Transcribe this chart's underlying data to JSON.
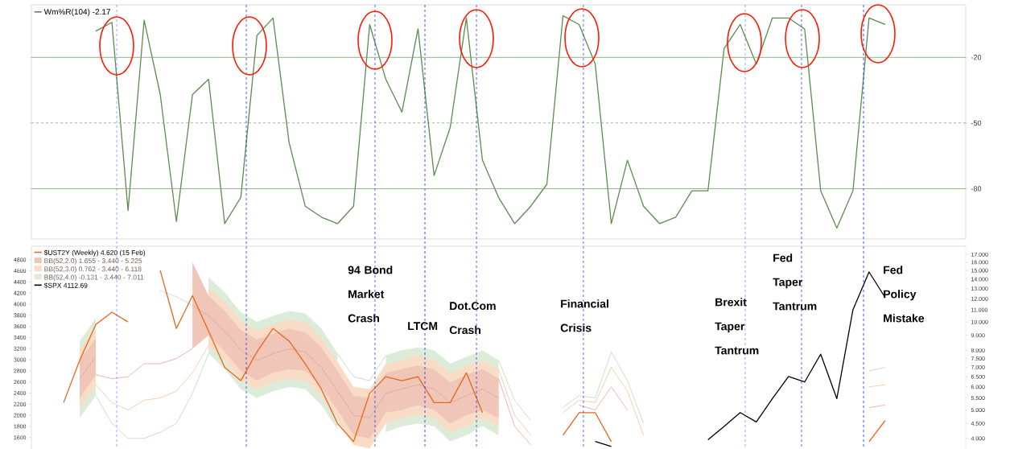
{
  "chart_data": [
    {
      "type": "line",
      "categories": [
        null,
        null,
        null,
        null,
        null,
        null,
        null,
        null,
        null,
        null,
        null,
        null,
        null,
        null,
        null,
        null,
        null,
        null,
        null,
        null,
        null,
        null,
        null,
        null,
        null,
        null,
        null,
        null,
        null,
        null,
        null,
        null,
        null,
        null,
        null,
        null,
        null,
        null,
        null,
        null,
        null,
        null,
        null,
        null,
        null,
        null,
        null,
        null,
        null,
        null,
        null,
        null,
        null,
        null,
        null,
        null,
        null,
        null,
        null
      ],
      "ylim": [
        -103,
        4
      ],
      "yticks": [
        -80,
        -50,
        -20
      ],
      "tick_labels": "y",
      "legend": "top left",
      "series": [
        {
          "name": "Wm%R(104) -2.17",
          "color": "#5b8c51",
          "values": [
            null,
            null,
            null,
            null,
            -8,
            -4,
            -90,
            -3,
            -37,
            -95,
            -37,
            -30,
            -96,
            -84,
            -10,
            -2,
            -59,
            -88,
            -93,
            -96,
            -88,
            -5,
            -30,
            -45,
            -7,
            -74,
            -52,
            -2,
            -67,
            -84,
            -96,
            -88,
            -78,
            -1,
            -5,
            -23,
            -96,
            -67,
            -88,
            -96,
            -93,
            -81,
            -81,
            -16,
            -5,
            -23,
            -2,
            -2,
            -7,
            -81,
            -98,
            -81,
            -2,
            -5,
            null,
            null,
            null,
            null,
            null
          ]
        }
      ],
      "ref_lines": [
        {
          "axis": "y",
          "value": -20,
          "color": "#7aa86e"
        },
        {
          "axis": "y",
          "value": -50,
          "color": "#7aa86e",
          "line_style": "dashed"
        },
        {
          "axis": "y",
          "value": -80,
          "color": "#7aa86e"
        }
      ]
    },
    {
      "type": "line",
      "categories": [
        null,
        null,
        null,
        null,
        null,
        null,
        null,
        null,
        null,
        null,
        null,
        null,
        null,
        null,
        null,
        null,
        null,
        null,
        null,
        null,
        null,
        null,
        null,
        null,
        null,
        null,
        null,
        null,
        null,
        null,
        null,
        null,
        null,
        null,
        null,
        null,
        null,
        null,
        null,
        null,
        null,
        null,
        null,
        null,
        null,
        null,
        null,
        null,
        null,
        null,
        null,
        null,
        null,
        null,
        null,
        null,
        null,
        null,
        null
      ],
      "ylim": [
        1394,
        5043
      ],
      "yticks": [
        1600,
        1800,
        2000,
        2200,
        2400,
        2600,
        2800,
        3000,
        3200,
        3400,
        3600,
        3800,
        4000,
        4200,
        4400,
        4600,
        4800
      ],
      "y2lim": [
        3.68,
        18.15
      ],
      "y2ticks": [
        {
          "value": 4,
          "label": "4.000"
        },
        {
          "value": 4.5,
          "label": "4.500"
        },
        {
          "value": 5,
          "label": "5.000"
        },
        {
          "value": 5.5,
          "label": "5.500"
        },
        {
          "value": 6,
          "label": "6.000"
        },
        {
          "value": 6.5,
          "label": "6.500"
        },
        {
          "value": 7,
          "label": "7.000"
        },
        {
          "value": 7.5,
          "label": "7.500"
        },
        {
          "value": 8,
          "label": "8.000"
        },
        {
          "value": 9,
          "label": "9.000"
        },
        {
          "value": 10,
          "label": "10.000"
        },
        {
          "value": 11,
          "label": "11.000"
        },
        {
          "value": 12,
          "label": "12.000"
        },
        {
          "value": 13,
          "label": "13.000"
        },
        {
          "value": 14,
          "label": "14.000"
        },
        {
          "value": 15,
          "label": "15.000"
        },
        {
          "value": 16,
          "label": "16.000"
        },
        {
          "value": 17,
          "label": "17.000"
        }
      ],
      "log": "y2",
      "tick_labels": "y",
      "legend": "top left",
      "annotations": [
        "94 Bond Market Crash",
        "LTCM",
        "Dot.Com Crash",
        "Financial Crisis",
        "Brexit Taper Tantrum",
        "Fed Taper Tantrum",
        "Fed Policy Mistake"
      ],
      "series": [
        {
          "name": "$UST2Y (Weekly) 4.620 (15 Feb)",
          "color": "#e8671c",
          "axis": "y2",
          "values": [
            null,
            null,
            5.3,
            7.4,
            9.8,
            10.8,
            10.0,
            null,
            15.0,
            9.5,
            12.3,
            9.3,
            7.0,
            6.3,
            7.9,
            9.5,
            8.6,
            7.2,
            5.9,
            4.5,
            3.9,
            5.7,
            6.5,
            6.3,
            6.5,
            5.3,
            5.3,
            6.7,
            4.9,
            null,
            null,
            null,
            null,
            4.1,
            4.9,
            4.9,
            3.9,
            null,
            null,
            null,
            null,
            null,
            null,
            null,
            null,
            null,
            null,
            null,
            null,
            null,
            null,
            null,
            3.9,
            4.6,
            null,
            null,
            null,
            null,
            null
          ]
        },
        {
          "name": "BB(52,2.0) 1.655 - 3.440 - 5.225",
          "color": "#efc6b8",
          "axis": "y2",
          "values": [
            null,
            null,
            null,
            null,
            null,
            null,
            null,
            null,
            null,
            null,
            null,
            null,
            null,
            null,
            null,
            null,
            null,
            null,
            null,
            null,
            null,
            null,
            null,
            null,
            null,
            null,
            null,
            null,
            null,
            null,
            null,
            null,
            null,
            null,
            null,
            null,
            null,
            null,
            null,
            null,
            null,
            null,
            null,
            null,
            null,
            null,
            null,
            null,
            null,
            null,
            null,
            null,
            null,
            null,
            null,
            null,
            null,
            null,
            null
          ],
          "lower": [
            null,
            null,
            null,
            5.5,
            6.6,
            null,
            null,
            null,
            null,
            null,
            8.1,
            9.0,
            7.9,
            6.8,
            6.3,
            6.7,
            6.9,
            6.8,
            6.0,
            5.0,
            4.1,
            4.0,
            4.9,
            5.0,
            5.2,
            5.0,
            4.5,
            4.8,
            5.0,
            4.7,
            null,
            null,
            null,
            null,
            null,
            null,
            null,
            null,
            null,
            null,
            null,
            null,
            null,
            null,
            null,
            null,
            null,
            null,
            null,
            null,
            null,
            null,
            null,
            null,
            null,
            null,
            null,
            null,
            null
          ],
          "upper": [
            null,
            null,
            null,
            7.4,
            8.8,
            null,
            null,
            null,
            null,
            null,
            16.0,
            12.3,
            10.9,
            9.4,
            8.7,
            9.1,
            9.5,
            9.2,
            8.2,
            6.8,
            5.6,
            5.5,
            6.7,
            6.9,
            7.1,
            6.9,
            6.2,
            6.6,
            6.9,
            6.4,
            null,
            null,
            null,
            null,
            null,
            null,
            null,
            null,
            null,
            null,
            null,
            null,
            null,
            null,
            null,
            null,
            null,
            null,
            null,
            null,
            null,
            null,
            null,
            null,
            null,
            null,
            null,
            null,
            null
          ]
        },
        {
          "name": "BB(52,3.0) 0.762 - 3.440 - 6.118",
          "color": "#f9dcc6",
          "axis": "y2",
          "values": [
            null,
            null,
            null,
            null,
            null,
            null,
            null,
            null,
            null,
            null,
            null,
            null,
            null,
            null,
            null,
            null,
            null,
            null,
            null,
            null,
            null,
            null,
            null,
            null,
            null,
            null,
            null,
            null,
            null,
            null,
            null,
            null,
            null,
            null,
            null,
            null,
            null,
            null,
            null,
            null,
            null,
            null,
            null,
            null,
            null,
            null,
            null,
            null,
            null,
            null,
            null,
            null,
            null,
            null,
            null,
            null,
            null,
            null,
            null
          ],
          "lower": [
            null,
            null,
            null,
            5.1,
            6.1,
            null,
            null,
            null,
            null,
            null,
            null,
            8.3,
            7.4,
            6.3,
            5.9,
            6.2,
            6.4,
            6.3,
            5.6,
            4.6,
            3.8,
            3.7,
            4.5,
            4.7,
            4.8,
            4.7,
            4.2,
            4.4,
            4.7,
            4.4,
            null,
            null,
            null,
            null,
            null,
            null,
            null,
            null,
            null,
            null,
            null,
            null,
            null,
            null,
            null,
            null,
            null,
            null,
            null,
            null,
            null,
            null,
            null,
            null,
            null,
            null,
            null,
            null,
            null
          ],
          "upper": [
            null,
            null,
            null,
            8.0,
            9.5,
            null,
            null,
            null,
            null,
            null,
            null,
            13.2,
            11.7,
            10.1,
            9.3,
            9.8,
            10.2,
            10.0,
            8.8,
            7.3,
            6.0,
            5.9,
            7.2,
            7.4,
            7.7,
            7.4,
            6.7,
            7.1,
            7.4,
            6.9,
            null,
            null,
            null,
            null,
            null,
            null,
            null,
            null,
            null,
            null,
            null,
            null,
            null,
            null,
            null,
            null,
            null,
            null,
            null,
            null,
            null,
            null,
            null,
            null,
            null,
            null,
            null,
            null,
            null
          ]
        },
        {
          "name": "BB(52,4.0) -0.131 - 3.440 - 7.011",
          "color": "#ddecd9",
          "axis": "y2",
          "values": [
            null,
            null,
            null,
            null,
            null,
            null,
            null,
            null,
            null,
            null,
            null,
            null,
            null,
            null,
            null,
            null,
            null,
            null,
            null,
            null,
            null,
            null,
            null,
            null,
            null,
            null,
            null,
            null,
            null,
            null,
            null,
            null,
            null,
            null,
            null,
            null,
            null,
            null,
            null,
            null,
            null,
            null,
            null,
            null,
            null,
            null,
            null,
            null,
            null,
            null,
            null,
            null,
            null,
            null,
            null,
            null,
            null,
            null,
            null
          ],
          "lower": [
            null,
            null,
            null,
            4.7,
            5.6,
            null,
            null,
            null,
            null,
            null,
            null,
            7.8,
            6.9,
            5.9,
            5.5,
            5.8,
            6.0,
            5.9,
            5.2,
            4.3,
            null,
            null,
            4.2,
            4.4,
            4.5,
            4.4,
            3.9,
            4.1,
            4.4,
            4.1,
            null,
            null,
            null,
            null,
            null,
            null,
            null,
            null,
            null,
            null,
            null,
            null,
            null,
            null,
            null,
            null,
            null,
            null,
            null,
            null,
            null,
            null,
            null,
            null,
            null,
            null,
            null,
            null,
            null
          ],
          "upper": [
            null,
            null,
            null,
            8.6,
            10.3,
            null,
            null,
            null,
            null,
            null,
            null,
            14.2,
            12.6,
            10.8,
            10.0,
            10.5,
            10.9,
            10.7,
            9.5,
            7.8,
            null,
            null,
            7.7,
            8.0,
            8.2,
            8.0,
            7.2,
            7.6,
            8.0,
            7.4,
            null,
            null,
            null,
            null,
            null,
            null,
            null,
            null,
            null,
            null,
            null,
            null,
            null,
            null,
            null,
            null,
            null,
            null,
            null,
            null,
            null,
            null,
            null,
            null,
            null,
            null,
            null,
            null,
            null
          ]
        },
        {
          "color": "#b5735f",
          "axis": "y2",
          "line_style": "dotted",
          "values": [
            null,
            null,
            null,
            6.4,
            7.6,
            null,
            null,
            null,
            12.8,
            12.2,
            11.4,
            10.5,
            9.3,
            8.0,
            7.4,
            7.8,
            8.1,
            7.9,
            7.0,
            5.8,
            4.8,
            4.7,
            5.7,
            5.9,
            6.1,
            5.9,
            5.3,
            5.6,
            5.9,
            5.5,
            null,
            null,
            null,
            null,
            null,
            null,
            null,
            null,
            null,
            null,
            null,
            null,
            null,
            null,
            null,
            null,
            null,
            null,
            null,
            null,
            null,
            null,
            null,
            null,
            null,
            null,
            null,
            null,
            null
          ]
        },
        {
          "color": "#e3998a",
          "axis": "y2",
          "values": [
            null,
            null,
            null,
            null,
            6.6,
            6.4,
            6.5,
            7.2,
            7.2,
            7.5,
            8.1,
            null,
            null,
            null,
            null,
            null,
            null,
            null,
            null,
            null,
            null,
            null,
            null,
            null,
            null,
            null,
            null,
            null,
            null,
            6.4,
            4.4,
            3.8,
            null,
            null,
            5.2,
            5.0,
            6.0,
            5.0,
            null,
            null,
            null,
            null,
            null,
            null,
            null,
            null,
            null,
            null,
            null,
            null,
            null,
            null,
            5.1,
            5.2,
            null,
            null,
            null,
            null,
            null
          ]
        },
        {
          "color": "#f4b98e",
          "axis": "y2",
          "values": [
            null,
            null,
            null,
            null,
            6.1,
            5.3,
            5.0,
            5.4,
            5.5,
            5.8,
            6.7,
            8.3,
            null,
            null,
            null,
            null,
            null,
            null,
            null,
            null,
            null,
            null,
            null,
            null,
            null,
            null,
            null,
            null,
            null,
            6.9,
            4.8,
            4.1,
            null,
            4.9,
            5.4,
            5.3,
            7.0,
            5.8,
            4.1,
            null,
            null,
            null,
            null,
            null,
            null,
            null,
            null,
            null,
            null,
            null,
            null,
            null,
            6.0,
            6.1,
            null,
            null,
            null,
            null,
            null
          ]
        },
        {
          "color": "#b5d3ae",
          "axis": "y2",
          "values": [
            null,
            null,
            null,
            null,
            5.6,
            4.5,
            4.0,
            4.0,
            4.2,
            4.5,
            5.7,
            7.8,
            null,
            null,
            null,
            null,
            null,
            null,
            null,
            7.8,
            6.5,
            6.3,
            7.7,
            null,
            null,
            null,
            null,
            null,
            null,
            7.4,
            5.4,
            4.6,
            null,
            5.1,
            5.6,
            5.5,
            7.9,
            6.3,
            4.5,
            null,
            null,
            null,
            null,
            null,
            null,
            null,
            null,
            null,
            null,
            null,
            null,
            null,
            6.8,
            7.0,
            null,
            null,
            null,
            null,
            null
          ]
        },
        {
          "name": "$SPX 4112.69",
          "color": "#000000",
          "values": [
            null,
            null,
            null,
            null,
            null,
            null,
            null,
            null,
            null,
            null,
            null,
            null,
            null,
            null,
            null,
            null,
            null,
            null,
            null,
            null,
            null,
            null,
            null,
            null,
            null,
            null,
            null,
            null,
            null,
            null,
            null,
            null,
            null,
            null,
            null,
            1530,
            1440,
            null,
            null,
            null,
            null,
            null,
            1560,
            1800,
            2050,
            1880,
            2300,
            2700,
            2600,
            3100,
            2300,
            3900,
            4580,
            4120,
            null,
            null,
            null,
            null,
            null
          ]
        }
      ]
    }
  ]
}
